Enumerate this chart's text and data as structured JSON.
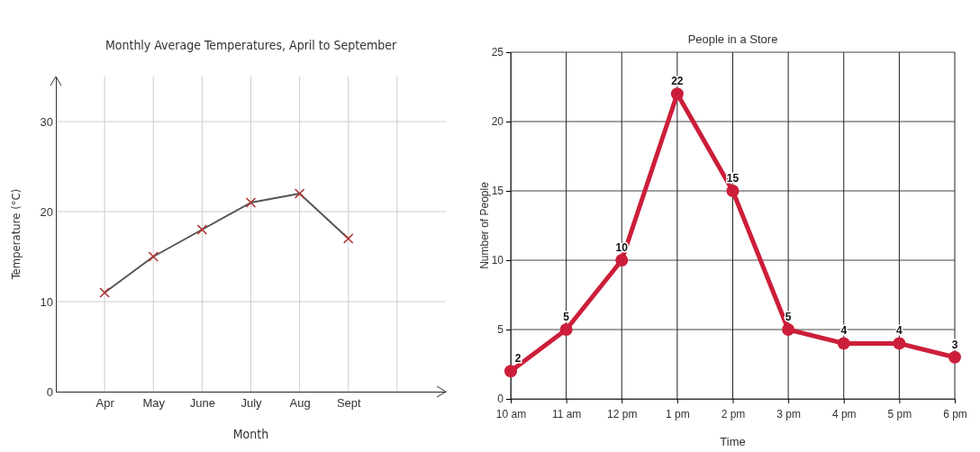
{
  "chart_data": [
    {
      "type": "line",
      "title": "Monthly Average Temperatures, April to September",
      "xlabel": "Month",
      "ylabel": "Temperature (°C)",
      "categories": [
        "Apr",
        "May",
        "June",
        "July",
        "Aug",
        "Sept"
      ],
      "series": [
        {
          "color": "#555555",
          "values": [
            11,
            15,
            18,
            21,
            22,
            17
          ]
        }
      ],
      "ylim": [
        0,
        35
      ],
      "yticks": [
        0,
        10,
        20,
        30
      ],
      "grid": true,
      "marker": "cross",
      "line_style": "solid"
    },
    {
      "type": "line",
      "title": "People in a Store",
      "xlabel": "Time",
      "ylabel": "Number of People",
      "categories": [
        "10 am",
        "11 am",
        "12 pm",
        "1 pm",
        "2 pm",
        "3 pm",
        "4 pm",
        "5 pm",
        "6 pm"
      ],
      "series": [
        {
          "color": "#cc1e3a",
          "values": [
            2,
            5,
            10,
            22,
            15,
            5,
            4,
            4,
            3
          ]
        }
      ],
      "ylim": [
        0,
        25
      ],
      "yticks": [
        0,
        5,
        10,
        15,
        20,
        25
      ],
      "grid": true,
      "marker": "circle",
      "line_style": "solid",
      "data_labels": true
    }
  ]
}
